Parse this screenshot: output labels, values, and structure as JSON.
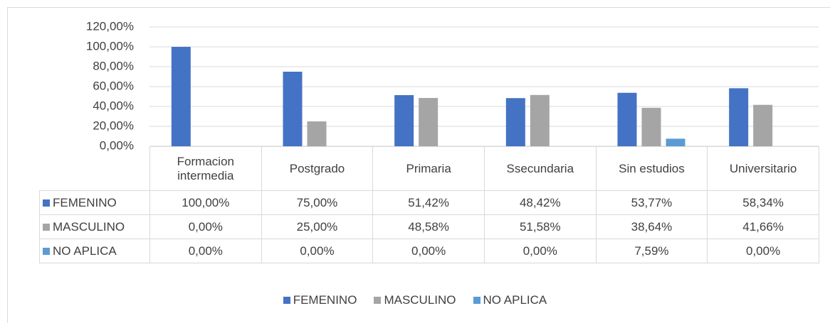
{
  "chart_data": {
    "type": "bar",
    "categories": [
      "Formacion intermedia",
      "Postgrado",
      "Primaria",
      "Ssecundaria",
      "Sin estudios",
      "Universitario"
    ],
    "series": [
      {
        "name": "FEMENINO",
        "color": "#4472c4",
        "values": [
          100,
          75,
          51.42,
          48.42,
          53.77,
          58.34
        ],
        "value_labels": [
          "100,00%",
          "75,00%",
          "51,42%",
          "48,42%",
          "53,77%",
          "58,34%"
        ]
      },
      {
        "name": "MASCULINO",
        "color": "#a5a5a5",
        "values": [
          0,
          25,
          48.58,
          51.58,
          38.64,
          41.66
        ],
        "value_labels": [
          "0,00%",
          "25,00%",
          "48,58%",
          "51,58%",
          "38,64%",
          "41,66%"
        ]
      },
      {
        "name": "NO APLICA",
        "color": "#5b9bd5",
        "values": [
          0,
          0,
          0,
          0,
          7.59,
          0
        ],
        "value_labels": [
          "0,00%",
          "0,00%",
          "0,00%",
          "0,00%",
          "7,59%",
          "0,00%"
        ]
      }
    ],
    "ylim": [
      0,
      120
    ],
    "yticks": [
      {
        "value": 0,
        "label": "0,00%"
      },
      {
        "value": 20,
        "label": "20,00%"
      },
      {
        "value": 40,
        "label": "40,00%"
      },
      {
        "value": 60,
        "label": "60,00%"
      },
      {
        "value": 80,
        "label": "80,00%"
      },
      {
        "value": 100,
        "label": "100,00%"
      },
      {
        "value": 120,
        "label": "120,00%"
      }
    ],
    "grid": true,
    "legend": "bottom"
  }
}
